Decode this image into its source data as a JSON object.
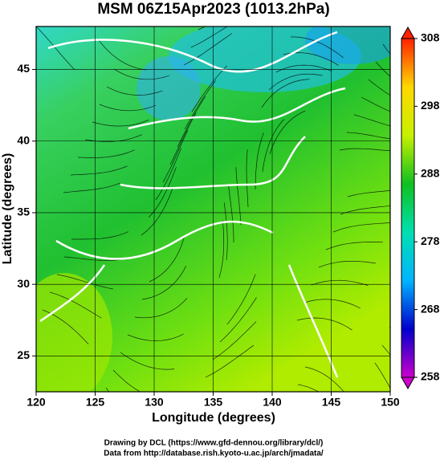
{
  "chart_data": {
    "type": "map",
    "title": "MSM 06Z15Apr2023 (1013.2hPa)",
    "x_label": "Longitude (degrees)",
    "y_label": "Latitude  (degrees)",
    "xlim": [
      120,
      150
    ],
    "xticks": [
      120,
      125,
      130,
      135,
      140,
      145,
      150
    ],
    "ylim": [
      22.5,
      48
    ],
    "yticks": [
      25,
      30,
      35,
      40,
      45
    ],
    "grid": true,
    "colorbar": {
      "lim": [
        258,
        308
      ],
      "ticks": [
        258,
        268,
        278,
        288,
        298,
        308
      ],
      "colors": [
        "#cc00cc",
        "#0000cc",
        "#00b4ff",
        "#00e0b0",
        "#10c020",
        "#c8f000",
        "#ffd800",
        "#ff2000"
      ]
    },
    "credits": [
      "Drawing by DCL (https://www.gfd-dennou.org/library/dcl/)",
      "Data from http://database.rish.kyoto-u.ac.jp/arch/jmadata/"
    ]
  }
}
